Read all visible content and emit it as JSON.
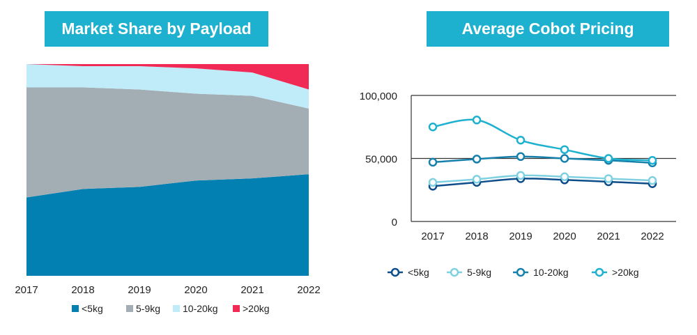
{
  "chart_data": [
    {
      "type": "area",
      "title": "Market Share by Payload",
      "stacked": true,
      "normalized_to_percent": true,
      "x": [
        "2017",
        "2018",
        "2019",
        "2020",
        "2021",
        "2022"
      ],
      "ylim": [
        0,
        100
      ],
      "grid": false,
      "legend_position": "bottom",
      "series": [
        {
          "name": "<5kg",
          "color": "#0180b1",
          "values": [
            37,
            41,
            42,
            45,
            46,
            48
          ]
        },
        {
          "name": "5-9kg",
          "color": "#a3adb4",
          "values": [
            52,
            48,
            46,
            41,
            39,
            31
          ]
        },
        {
          "name": "10-20kg",
          "color": "#c0ebf9",
          "values": [
            11,
            10,
            11,
            12,
            11,
            9
          ]
        },
        {
          "name": ">20kg",
          "color": "#f02a55",
          "values": [
            0,
            1,
            1,
            2,
            4,
            12
          ]
        }
      ]
    },
    {
      "type": "line",
      "title": "Average Cobot Pricing",
      "x": [
        "2017",
        "2018",
        "2019",
        "2020",
        "2021",
        "2022"
      ],
      "ylim": [
        0,
        100000
      ],
      "y_ticks": [
        "0",
        "50,000",
        "100,000"
      ],
      "grid": true,
      "legend_position": "bottom",
      "series": [
        {
          "name": "<5kg",
          "color": "#0d4d8a",
          "values": [
            28000,
            31000,
            34000,
            33000,
            31500,
            30000
          ]
        },
        {
          "name": "5-9kg",
          "color": "#7fd1e2",
          "values": [
            31000,
            33500,
            36500,
            35500,
            34000,
            32500
          ]
        },
        {
          "name": "10-20kg",
          "color": "#1580ac",
          "values": [
            47000,
            49500,
            51500,
            50000,
            48500,
            46500
          ]
        },
        {
          "name": ">20kg",
          "color": "#1eb1cf",
          "values": [
            75000,
            80500,
            64500,
            57000,
            50000,
            48500
          ]
        }
      ]
    }
  ]
}
